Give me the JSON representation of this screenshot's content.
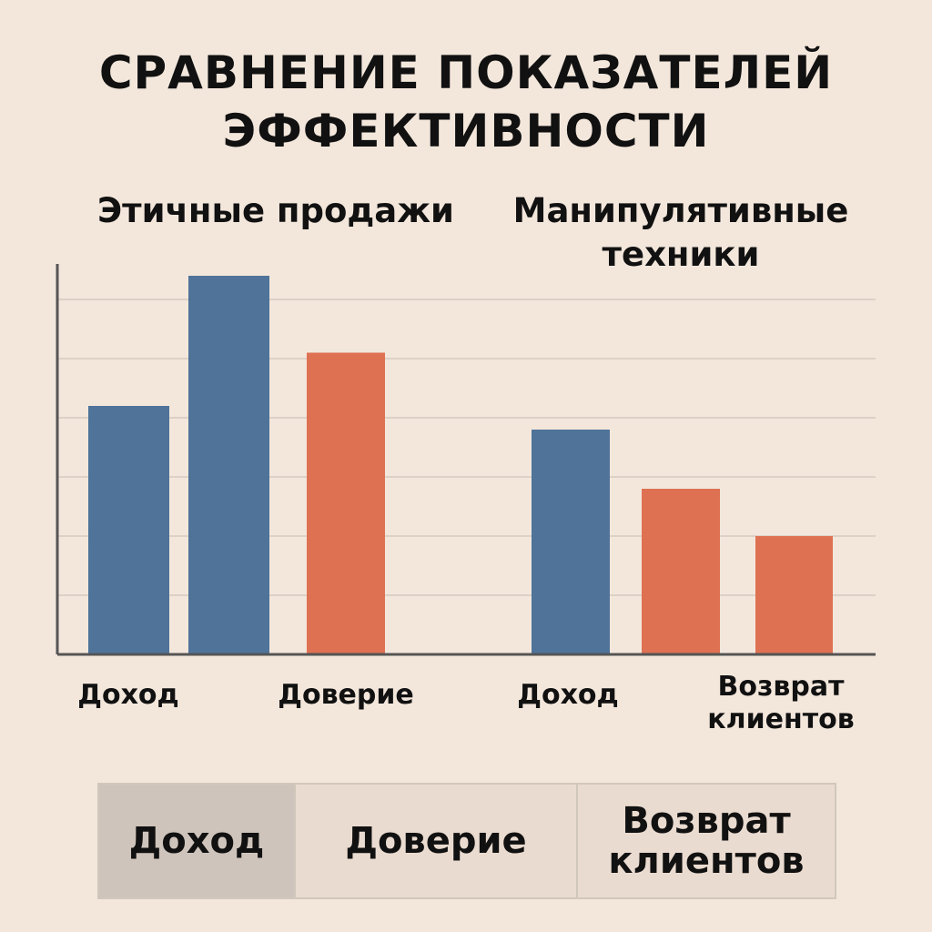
{
  "title": {
    "line1": "СРАВНЕНИЕ ПОКАЗАТЕЛЕЙ",
    "line2": "ЭФФЕКТИВНОСТИ"
  },
  "chart_data": {
    "type": "bar",
    "title": "СРАВНЕНИЕ ПОКАЗАТЕЛЕЙ ЭФФЕКТИВНОСТИ",
    "ylim": [
      0,
      6.6
    ],
    "grid": true,
    "groups": [
      {
        "name": "Этичные продажи",
        "bars": [
          {
            "label": "Доход",
            "value": 4.2,
            "color": "#4f7399"
          },
          {
            "label": "",
            "value": 6.4,
            "color": "#4f7399"
          },
          {
            "label": "Доверие",
            "value": 5.1,
            "color": "#de7152"
          }
        ]
      },
      {
        "name": "Манипулятивные техники",
        "bars": [
          {
            "label": "Доход",
            "value": 3.8,
            "color": "#4f7399"
          },
          {
            "label": "",
            "value": 2.8,
            "color": "#de7152"
          },
          {
            "label": "Возврат клиентов",
            "value": 2.0,
            "color": "#de7152"
          }
        ]
      }
    ],
    "legend": [
      "Доход",
      "Доверие",
      "Возврат клиентов"
    ]
  },
  "legend_box": {
    "items": [
      {
        "lines": [
          "Доход"
        ]
      },
      {
        "lines": [
          "Доверие"
        ]
      },
      {
        "lines": [
          "Возврат",
          "клиентов"
        ]
      }
    ]
  },
  "tick_labels": [
    {
      "lines": [
        "Доход"
      ]
    },
    {
      "lines": [
        "Доверие"
      ]
    },
    {
      "lines": [
        "Доход"
      ]
    },
    {
      "lines": [
        "Возврат",
        "клиентов"
      ]
    }
  ],
  "colors": {
    "background": "#f3e7dc",
    "blue": "#4f7399",
    "orange": "#de7152",
    "grid": "#ddd1c7",
    "axis": "#555555"
  }
}
